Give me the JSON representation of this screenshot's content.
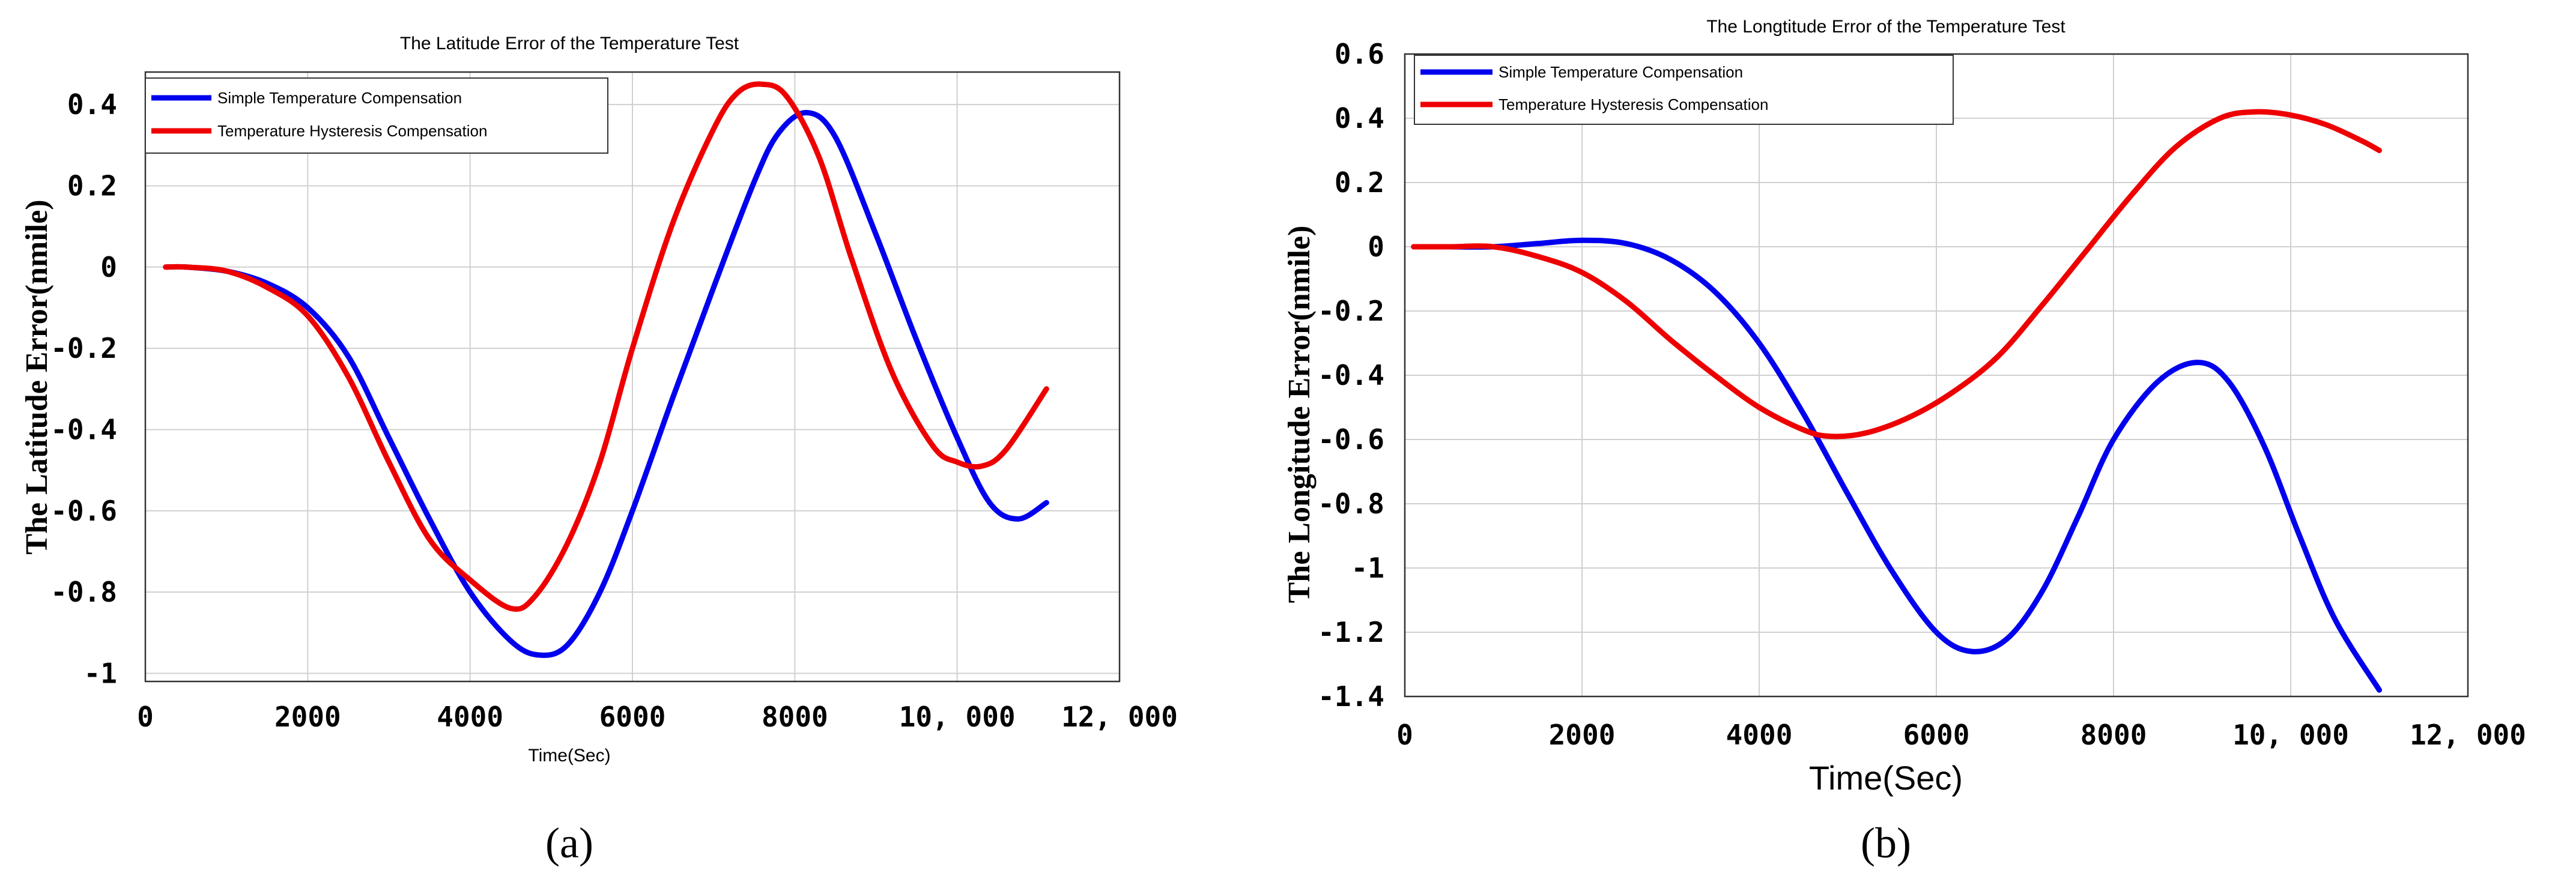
{
  "chart_data": [
    {
      "type": "line",
      "title": "The Latitude Error of the Temperature Test",
      "xlabel": "Time(Sec)",
      "ylabel": "The Latitude Error(nmile)",
      "caption": "(a)",
      "xlim": [
        0,
        12000
      ],
      "ylim": [
        -1.02,
        0.48
      ],
      "xticks": [
        0,
        2000,
        4000,
        6000,
        8000,
        10000,
        12000
      ],
      "xtick_labels": [
        "0",
        "2000",
        "4000",
        "6000",
        "8000",
        "10, 000",
        "12, 000"
      ],
      "yticks": [
        0.4,
        0.2,
        0,
        -0.2,
        -0.4,
        -0.6,
        -0.8,
        -1
      ],
      "ytick_labels": [
        "0.4",
        "0.2",
        "0",
        "-0.2",
        "-0.4",
        "-0.6",
        "-0.8",
        "-1"
      ],
      "grid": true,
      "legend_position": "top-left",
      "series": [
        {
          "name": "Simple Temperature Compensation",
          "color": "#0000ee",
          "x": [
            250,
            500,
            1000,
            1500,
            2000,
            2500,
            3000,
            3500,
            4000,
            4500,
            4850,
            5200,
            5600,
            6000,
            6500,
            7000,
            7500,
            7800,
            8150,
            8500,
            9000,
            9500,
            10000,
            10400,
            10750,
            11100
          ],
          "y": [
            0.0,
            0.0,
            -0.01,
            -0.04,
            -0.1,
            -0.22,
            -0.42,
            -0.62,
            -0.8,
            -0.92,
            -0.955,
            -0.93,
            -0.8,
            -0.6,
            -0.32,
            -0.05,
            0.21,
            0.33,
            0.38,
            0.32,
            0.08,
            -0.18,
            -0.42,
            -0.58,
            -0.62,
            -0.58
          ]
        },
        {
          "name": "Temperature Hysteresis Compensation",
          "color": "#ee0000",
          "x": [
            250,
            500,
            1000,
            1500,
            2000,
            2500,
            3000,
            3500,
            4000,
            4500,
            4800,
            5200,
            5600,
            6000,
            6500,
            7000,
            7300,
            7600,
            7900,
            8300,
            8700,
            9200,
            9700,
            10000,
            10300,
            10600,
            11100
          ],
          "y": [
            0.0,
            0.0,
            -0.01,
            -0.05,
            -0.12,
            -0.27,
            -0.48,
            -0.67,
            -0.77,
            -0.84,
            -0.81,
            -0.68,
            -0.48,
            -0.2,
            0.11,
            0.34,
            0.43,
            0.45,
            0.42,
            0.27,
            0.02,
            -0.26,
            -0.44,
            -0.48,
            -0.49,
            -0.45,
            -0.3
          ]
        }
      ]
    },
    {
      "type": "line",
      "title": "The Longtitude Error of the Temperature Test",
      "xlabel": "Time(Sec)",
      "ylabel": "The Longitude Error(nmile)",
      "caption": "(b)",
      "xlim": [
        0,
        12000
      ],
      "ylim": [
        -1.4,
        0.6
      ],
      "xticks": [
        0,
        2000,
        4000,
        6000,
        8000,
        10000,
        12000
      ],
      "xtick_labels": [
        "0",
        "2000",
        "4000",
        "6000",
        "8000",
        "10, 000",
        "12, 000"
      ],
      "yticks": [
        0.6,
        0.4,
        0.2,
        0,
        -0.2,
        -0.4,
        -0.6,
        -0.8,
        -1,
        -1.2,
        -1.4
      ],
      "ytick_labels": [
        "0.6",
        "0.4",
        "0.2",
        "0",
        "-0.2",
        "-0.4",
        "-0.6",
        "-0.8",
        "-1",
        "-1.2",
        "-1.4"
      ],
      "grid": true,
      "legend_position": "top-left",
      "series": [
        {
          "name": "Simple Temperature Compensation",
          "color": "#0000ee",
          "x": [
            100,
            500,
            1000,
            1500,
            2000,
            2500,
            3000,
            3500,
            4000,
            4500,
            5000,
            5500,
            6000,
            6400,
            6800,
            7200,
            7600,
            8000,
            8500,
            8950,
            9300,
            9700,
            10100,
            10500,
            11000
          ],
          "y": [
            0.0,
            0.0,
            0.0,
            0.01,
            0.02,
            0.01,
            -0.04,
            -0.14,
            -0.3,
            -0.52,
            -0.77,
            -1.01,
            -1.2,
            -1.26,
            -1.22,
            -1.07,
            -0.84,
            -0.6,
            -0.42,
            -0.36,
            -0.42,
            -0.62,
            -0.9,
            -1.16,
            -1.38
          ]
        },
        {
          "name": "Temperature Hysteresis Compensation",
          "color": "#ee0000",
          "x": [
            100,
            500,
            1000,
            1500,
            2000,
            2500,
            3000,
            3500,
            4000,
            4500,
            4800,
            5200,
            5700,
            6200,
            6700,
            7200,
            7700,
            8200,
            8700,
            9200,
            9600,
            10000,
            10400,
            10800,
            11000
          ],
          "y": [
            0.0,
            0.0,
            0.0,
            -0.03,
            -0.08,
            -0.17,
            -0.29,
            -0.4,
            -0.5,
            -0.57,
            -0.59,
            -0.58,
            -0.53,
            -0.45,
            -0.34,
            -0.18,
            -0.01,
            0.16,
            0.31,
            0.4,
            0.42,
            0.41,
            0.38,
            0.33,
            0.3
          ]
        }
      ]
    }
  ]
}
